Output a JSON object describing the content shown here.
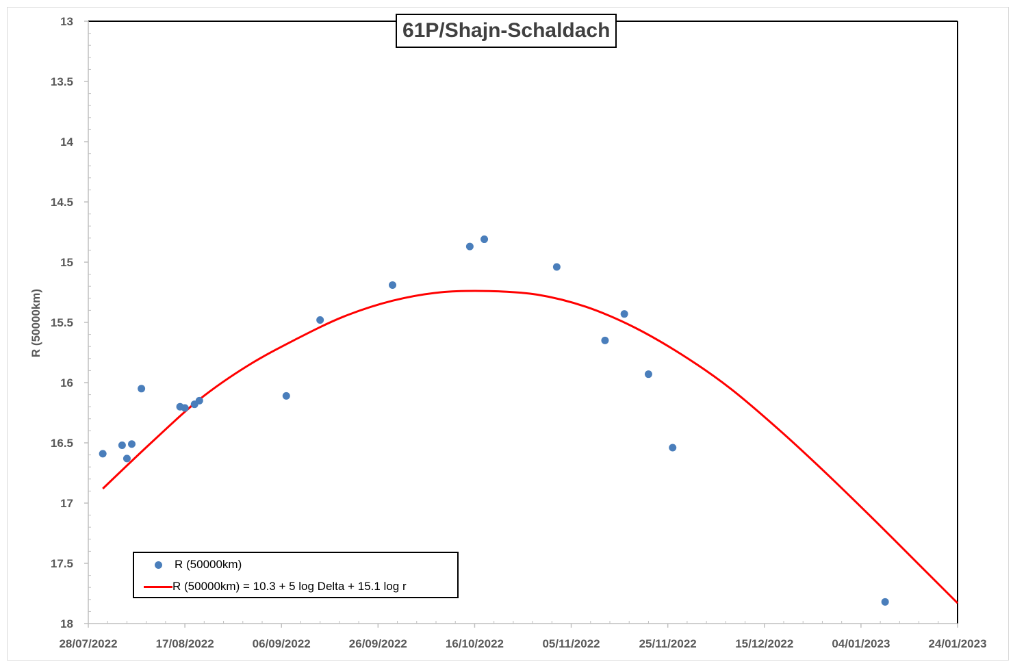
{
  "chart_data": {
    "type": "scatter",
    "title": "61P/Shajn-Schaldach",
    "ylabel": "R (50000km)",
    "xlabel": "",
    "y_reversed": true,
    "ylim": [
      13,
      18
    ],
    "y_ticks": [
      "13",
      "13.5",
      "14",
      "14.5",
      "15",
      "15.5",
      "16",
      "16.5",
      "17",
      "17.5",
      "18"
    ],
    "xlim": [
      "2022-07-28",
      "2023-01-24"
    ],
    "x_ticks": [
      "28/07/2022",
      "17/08/2022",
      "06/09/2022",
      "26/09/2022",
      "16/10/2022",
      "05/11/2022",
      "25/11/2022",
      "15/12/2022",
      "04/01/2023",
      "24/01/2023"
    ],
    "x_tick_dates": [
      "2022-07-28",
      "2022-08-17",
      "2022-09-06",
      "2022-09-26",
      "2022-10-16",
      "2022-11-05",
      "2022-11-25",
      "2022-12-15",
      "2023-01-04",
      "2023-01-24"
    ],
    "grid": false,
    "legend_position": "bottom-left",
    "series": [
      {
        "name": "R (50000km)",
        "kind": "scatter",
        "color": "#4a7ebb",
        "points": [
          {
            "x": "2022-07-31",
            "y": 16.59
          },
          {
            "x": "2022-08-04",
            "y": 16.52
          },
          {
            "x": "2022-08-05",
            "y": 16.63
          },
          {
            "x": "2022-08-06",
            "y": 16.51
          },
          {
            "x": "2022-08-08",
            "y": 16.05
          },
          {
            "x": "2022-08-16",
            "y": 16.2
          },
          {
            "x": "2022-08-17",
            "y": 16.21
          },
          {
            "x": "2022-08-19",
            "y": 16.18
          },
          {
            "x": "2022-08-20",
            "y": 16.15
          },
          {
            "x": "2022-09-07",
            "y": 16.11
          },
          {
            "x": "2022-09-14",
            "y": 15.48
          },
          {
            "x": "2022-09-29",
            "y": 15.19
          },
          {
            "x": "2022-10-15",
            "y": 14.87
          },
          {
            "x": "2022-10-18",
            "y": 14.81
          },
          {
            "x": "2022-11-02",
            "y": 15.04
          },
          {
            "x": "2022-11-12",
            "y": 15.65
          },
          {
            "x": "2022-11-16",
            "y": 15.43
          },
          {
            "x": "2022-11-21",
            "y": 15.93
          },
          {
            "x": "2022-11-26",
            "y": 16.54
          },
          {
            "x": "2023-01-09",
            "y": 17.82
          }
        ]
      },
      {
        "name": "R (50000km) = 10.3 + 5 log Delta + 15.1 log r",
        "kind": "line",
        "color": "#ff0000",
        "points": [
          {
            "x": "2022-07-31",
            "y": 16.88
          },
          {
            "x": "2022-08-10",
            "y": 16.5
          },
          {
            "x": "2022-08-20",
            "y": 16.14
          },
          {
            "x": "2022-08-30",
            "y": 15.86
          },
          {
            "x": "2022-09-09",
            "y": 15.64
          },
          {
            "x": "2022-09-19",
            "y": 15.45
          },
          {
            "x": "2022-09-29",
            "y": 15.32
          },
          {
            "x": "2022-10-09",
            "y": 15.25
          },
          {
            "x": "2022-10-19",
            "y": 15.24
          },
          {
            "x": "2022-10-29",
            "y": 15.27
          },
          {
            "x": "2022-11-08",
            "y": 15.37
          },
          {
            "x": "2022-11-18",
            "y": 15.54
          },
          {
            "x": "2022-11-28",
            "y": 15.77
          },
          {
            "x": "2022-12-08",
            "y": 16.05
          },
          {
            "x": "2022-12-18",
            "y": 16.39
          },
          {
            "x": "2022-12-28",
            "y": 16.76
          },
          {
            "x": "2023-01-07",
            "y": 17.15
          },
          {
            "x": "2023-01-17",
            "y": 17.55
          },
          {
            "x": "2023-01-24",
            "y": 17.83
          }
        ]
      }
    ]
  }
}
